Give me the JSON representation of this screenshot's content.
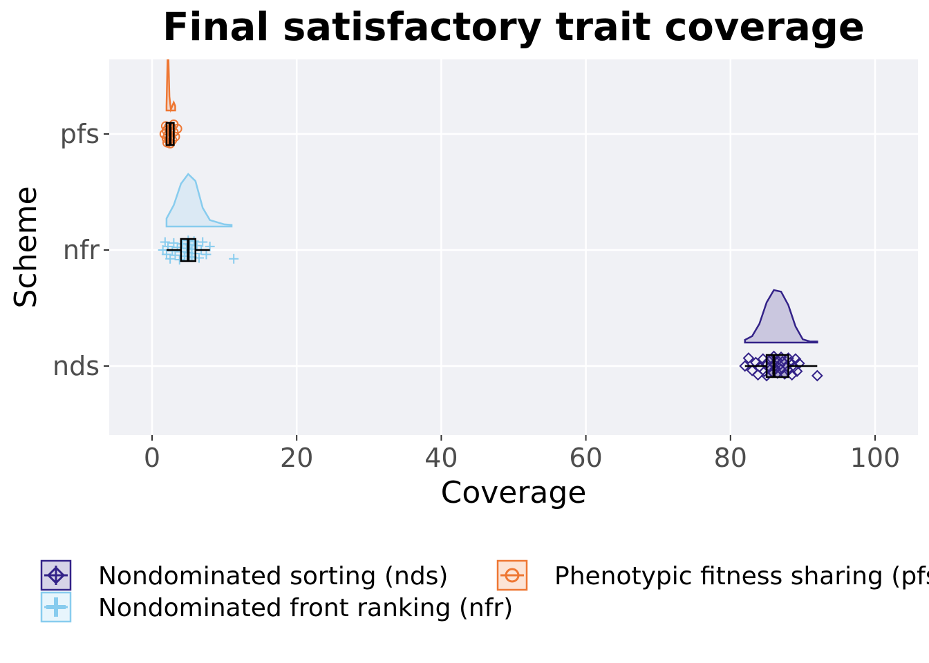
{
  "chart_data": {
    "type": "raincloud",
    "title": "Final satisfactory trait coverage",
    "xlabel": "Coverage",
    "ylabel": "Scheme",
    "xlim": [
      -6,
      106
    ],
    "x_ticks": [
      0,
      20,
      40,
      60,
      80,
      100
    ],
    "categories": [
      "pfs",
      "nfr",
      "nds"
    ],
    "grid": true,
    "legend_position": "bottom",
    "series": [
      {
        "key": "nds",
        "name": "Nondominated sorting (nds)",
        "color": "#332288",
        "marker": "diamond",
        "box": {
          "min": 82,
          "q1": 85,
          "median": 86,
          "q3": 88,
          "max": 92
        },
        "points": [
          82.0,
          82.5,
          83.0,
          83.5,
          83.8,
          84.0,
          84.5,
          84.7,
          85.0,
          85.0,
          85.3,
          85.5,
          85.8,
          86.0,
          86.0,
          86.2,
          86.5,
          86.5,
          86.8,
          87.0,
          87.0,
          87.2,
          87.5,
          87.8,
          88.0,
          88.0,
          88.3,
          88.5,
          88.8,
          89.0,
          89.2,
          89.5,
          92.0
        ],
        "density": {
          "x": [
            82,
            83,
            84,
            85,
            86,
            87,
            88,
            89,
            90,
            91,
            92
          ],
          "y": [
            0.05,
            0.12,
            0.35,
            0.75,
            0.98,
            0.95,
            0.7,
            0.3,
            0.06,
            0.02,
            0.02
          ]
        }
      },
      {
        "key": "nfr",
        "name": "Nondominated front ranking (nfr)",
        "color": "#88CCEE",
        "marker": "plus",
        "box": {
          "min": 2,
          "q1": 4,
          "median": 5,
          "q3": 6,
          "max": 8
        },
        "points": [
          1.5,
          1.8,
          2.0,
          2.2,
          2.5,
          2.8,
          3.0,
          3.2,
          3.5,
          3.8,
          4.0,
          4.2,
          4.5,
          4.8,
          5.0,
          5.0,
          5.2,
          5.5,
          5.5,
          5.8,
          6.0,
          6.2,
          6.5,
          6.8,
          7.0,
          7.5,
          8.0,
          11.3
        ],
        "density": {
          "x": [
            2,
            3,
            4,
            5,
            6,
            7,
            8,
            9,
            10,
            11
          ],
          "y": [
            0.15,
            0.4,
            0.8,
            0.98,
            0.85,
            0.35,
            0.12,
            0.08,
            0.04,
            0.03
          ]
        }
      },
      {
        "key": "pfs",
        "name": "Phenotypic fitness sharing (pfs)",
        "color": "#EE7733",
        "marker": "circle",
        "box": {
          "min": 2,
          "q1": 2,
          "median": 2.5,
          "q3": 3,
          "max": 3
        },
        "points": [
          1.7,
          1.9,
          2.0,
          2.0,
          2.1,
          2.2,
          2.3,
          2.4,
          2.5,
          2.5,
          2.6,
          2.7,
          2.8,
          3.0,
          3.0,
          3.2,
          3.5
        ],
        "density": {
          "x": [
            2.0,
            2.2,
            2.4,
            2.6,
            2.8,
            3.0,
            3.2
          ],
          "y": [
            0.2,
            3.0,
            0.6,
            0.05,
            0.2,
            0.35,
            0.2
          ]
        }
      }
    ]
  },
  "legend": [
    {
      "key": "nds",
      "label": "Nondominated sorting (nds)",
      "color": "#332288",
      "marker": "diamond"
    },
    {
      "key": "pfs",
      "label": "Phenotypic fitness sharing (pfs)",
      "color": "#EE7733",
      "marker": "circle"
    },
    {
      "key": "nfr",
      "label": "Nondominated front ranking (nfr)",
      "color": "#88CCEE",
      "marker": "plus"
    }
  ]
}
